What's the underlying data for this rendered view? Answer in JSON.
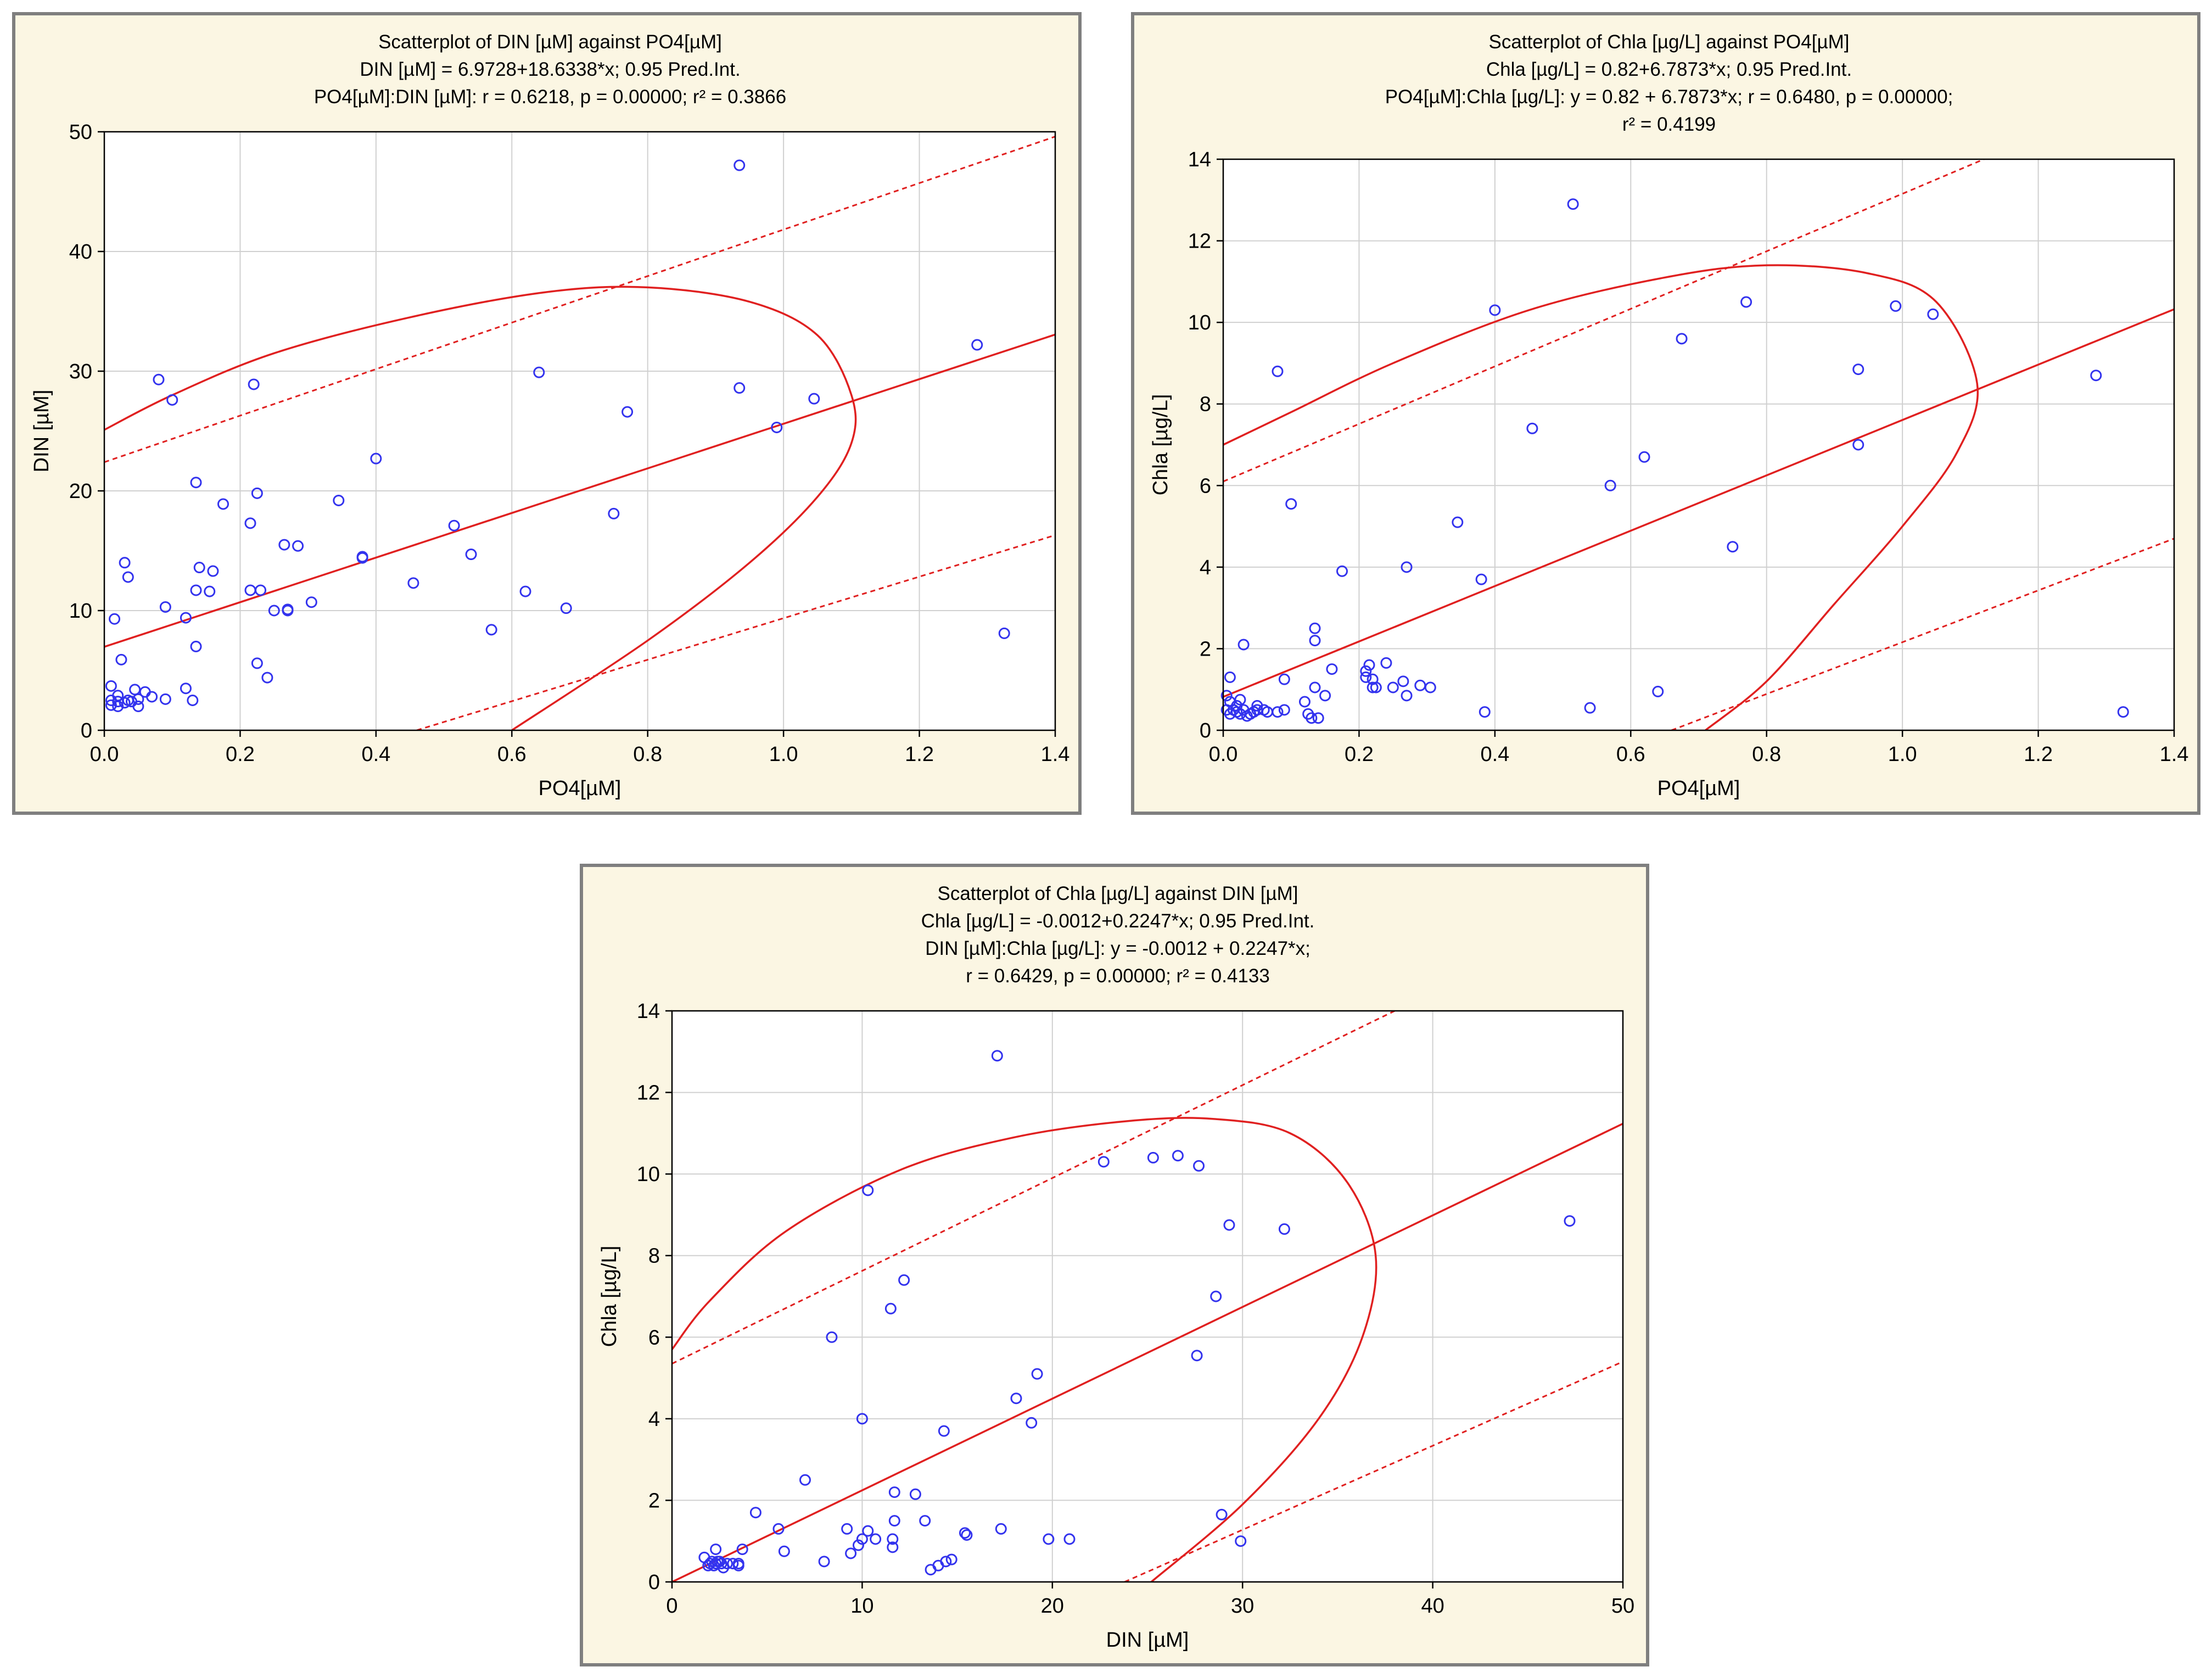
{
  "page": {
    "background": "#ffffff",
    "panel_background": "#fbf6e3",
    "panel_border": "#7f7f7f"
  },
  "colors": {
    "points": "#3333ee",
    "fit": "#e02020",
    "grid": "#d0d0d0"
  },
  "chart_data": [
    {
      "type": "scatter",
      "title_lines": [
        "Scatterplot of DIN [µM] against PO4[µM]",
        "DIN [µM] = 6.9728+18.6338*x; 0.95 Pred.Int.",
        "PO4[µM]:DIN [µM]:   r = 0.6218, p = 0.00000; r² = 0.3866"
      ],
      "xlabel": "PO4[µM]",
      "ylabel": "DIN [µM]",
      "xlim": [
        0,
        1.4
      ],
      "ylim": [
        0,
        50
      ],
      "xticks": [
        0,
        0.2,
        0.4,
        0.6,
        0.8,
        1.0,
        1.2,
        1.4
      ],
      "xtick_labels": [
        "0.0",
        "0.2",
        "0.4",
        "0.6",
        "0.8",
        "1.0",
        "1.2",
        "1.4"
      ],
      "yticks": [
        0,
        10,
        20,
        30,
        40,
        50
      ],
      "ytick_labels": [
        "0",
        "10",
        "20",
        "30",
        "40",
        "50"
      ],
      "fit": {
        "intercept": 6.9728,
        "slope": 18.6338
      },
      "pred_interval": {
        "upper": [
          [
            0,
            22.4
          ],
          [
            1.4,
            49.6
          ]
        ],
        "lower": [
          [
            0.46,
            0
          ],
          [
            1.4,
            16.3
          ]
        ]
      },
      "ellipse": [
        [
          0,
          25.1
        ],
        [
          0.1,
          28.0
        ],
        [
          0.25,
          31.5
        ],
        [
          0.45,
          34.5
        ],
        [
          0.65,
          36.6
        ],
        [
          0.8,
          37.0
        ],
        [
          0.95,
          35.8
        ],
        [
          1.05,
          33.0
        ],
        [
          1.1,
          28.0
        ],
        [
          1.1,
          24.0
        ],
        [
          1.05,
          19.5
        ],
        [
          0.95,
          14.0
        ],
        [
          0.8,
          7.5
        ],
        [
          0.6,
          0
        ]
      ],
      "points": [
        [
          0.01,
          3.7
        ],
        [
          0.01,
          2.5
        ],
        [
          0.01,
          2.1
        ],
        [
          0.02,
          2.4
        ],
        [
          0.02,
          2.0
        ],
        [
          0.02,
          2.9
        ],
        [
          0.015,
          9.3
        ],
        [
          0.025,
          5.9
        ],
        [
          0.03,
          2.3
        ],
        [
          0.035,
          2.5
        ],
        [
          0.04,
          2.4
        ],
        [
          0.045,
          3.4
        ],
        [
          0.05,
          2.0
        ],
        [
          0.05,
          2.6
        ],
        [
          0.06,
          3.2
        ],
        [
          0.07,
          2.8
        ],
        [
          0.03,
          14.0
        ],
        [
          0.035,
          12.8
        ],
        [
          0.08,
          29.3
        ],
        [
          0.09,
          2.6
        ],
        [
          0.09,
          10.3
        ],
        [
          0.1,
          27.6
        ],
        [
          0.12,
          9.4
        ],
        [
          0.12,
          3.5
        ],
        [
          0.13,
          2.5
        ],
        [
          0.135,
          20.7
        ],
        [
          0.135,
          7.0
        ],
        [
          0.135,
          11.7
        ],
        [
          0.14,
          13.6
        ],
        [
          0.155,
          11.6
        ],
        [
          0.16,
          13.3
        ],
        [
          0.175,
          18.9
        ],
        [
          0.215,
          17.3
        ],
        [
          0.215,
          11.7
        ],
        [
          0.22,
          28.9
        ],
        [
          0.225,
          19.8
        ],
        [
          0.225,
          5.6
        ],
        [
          0.23,
          11.7
        ],
        [
          0.24,
          4.4
        ],
        [
          0.25,
          10.0
        ],
        [
          0.265,
          15.5
        ],
        [
          0.27,
          10.0
        ],
        [
          0.27,
          10.1
        ],
        [
          0.285,
          15.4
        ],
        [
          0.305,
          10.7
        ],
        [
          0.345,
          19.2
        ],
        [
          0.38,
          14.5
        ],
        [
          0.38,
          14.4
        ],
        [
          0.4,
          22.7
        ],
        [
          0.455,
          12.3
        ],
        [
          0.515,
          17.1
        ],
        [
          0.54,
          14.7
        ],
        [
          0.57,
          8.4
        ],
        [
          0.62,
          11.6
        ],
        [
          0.64,
          29.9
        ],
        [
          0.68,
          10.2
        ],
        [
          0.75,
          18.1
        ],
        [
          0.77,
          26.6
        ],
        [
          0.935,
          47.2
        ],
        [
          0.935,
          28.6
        ],
        [
          0.99,
          25.3
        ],
        [
          1.045,
          27.7
        ],
        [
          1.285,
          32.2
        ],
        [
          1.325,
          8.1
        ]
      ]
    },
    {
      "type": "scatter",
      "title_lines": [
        "Scatterplot of Chla [µg/L] against PO4[µM]",
        "Chla [µg/L] = 0.82+6.7873*x; 0.95 Pred.Int.",
        "PO4[µM]:Chla [µg/L]:   y = 0.82 + 6.7873*x;  r = 0.6480, p = 0.00000;",
        "r² = 0.4199"
      ],
      "xlabel": "PO4[µM]",
      "ylabel": "Chla [µg/L]",
      "xlim": [
        0,
        1.4
      ],
      "ylim": [
        0,
        14
      ],
      "xticks": [
        0,
        0.2,
        0.4,
        0.6,
        0.8,
        1.0,
        1.2,
        1.4
      ],
      "xtick_labels": [
        "0.0",
        "0.2",
        "0.4",
        "0.6",
        "0.8",
        "1.0",
        "1.2",
        "1.4"
      ],
      "yticks": [
        0,
        2,
        4,
        6,
        8,
        10,
        12,
        14
      ],
      "ytick_labels": [
        "0",
        "2",
        "4",
        "6",
        "8",
        "10",
        "12",
        "14"
      ],
      "fit": {
        "intercept": 0.82,
        "slope": 6.7873
      },
      "pred_interval": {
        "upper": [
          [
            0,
            6.1
          ],
          [
            1.12,
            14
          ]
        ],
        "lower": [
          [
            0.66,
            0
          ],
          [
            1.4,
            4.7
          ]
        ]
      },
      "ellipse": [
        [
          0,
          7.0
        ],
        [
          0.1,
          7.8
        ],
        [
          0.25,
          9.0
        ],
        [
          0.45,
          10.3
        ],
        [
          0.65,
          11.1
        ],
        [
          0.8,
          11.4
        ],
        [
          0.95,
          11.2
        ],
        [
          1.05,
          10.5
        ],
        [
          1.11,
          8.5
        ],
        [
          1.08,
          6.8
        ],
        [
          1.0,
          5.0
        ],
        [
          0.9,
          3.1
        ],
        [
          0.8,
          1.2
        ],
        [
          0.71,
          0
        ]
      ],
      "points": [
        [
          0.005,
          0.5
        ],
        [
          0.005,
          0.85
        ],
        [
          0.01,
          0.4
        ],
        [
          0.01,
          0.7
        ],
        [
          0.01,
          1.3
        ],
        [
          0.015,
          0.5
        ],
        [
          0.015,
          0.5
        ],
        [
          0.02,
          0.6
        ],
        [
          0.02,
          0.45
        ],
        [
          0.025,
          0.4
        ],
        [
          0.025,
          0.75
        ],
        [
          0.03,
          0.5
        ],
        [
          0.03,
          2.1
        ],
        [
          0.035,
          0.35
        ],
        [
          0.04,
          0.4
        ],
        [
          0.045,
          0.45
        ],
        [
          0.05,
          0.5
        ],
        [
          0.05,
          0.6
        ],
        [
          0.06,
          0.5
        ],
        [
          0.065,
          0.45
        ],
        [
          0.08,
          0.45
        ],
        [
          0.08,
          8.8
        ],
        [
          0.09,
          1.25
        ],
        [
          0.09,
          0.5
        ],
        [
          0.1,
          5.55
        ],
        [
          0.12,
          0.7
        ],
        [
          0.125,
          0.4
        ],
        [
          0.13,
          0.3
        ],
        [
          0.135,
          1.05
        ],
        [
          0.135,
          2.5
        ],
        [
          0.135,
          2.2
        ],
        [
          0.14,
          0.3
        ],
        [
          0.15,
          0.85
        ],
        [
          0.16,
          1.5
        ],
        [
          0.175,
          3.9
        ],
        [
          0.21,
          1.45
        ],
        [
          0.21,
          1.3
        ],
        [
          0.215,
          1.6
        ],
        [
          0.22,
          1.05
        ],
        [
          0.22,
          1.25
        ],
        [
          0.225,
          1.05
        ],
        [
          0.24,
          1.65
        ],
        [
          0.25,
          1.05
        ],
        [
          0.265,
          1.2
        ],
        [
          0.27,
          0.85
        ],
        [
          0.27,
          4.0
        ],
        [
          0.29,
          1.1
        ],
        [
          0.305,
          1.05
        ],
        [
          0.345,
          5.1
        ],
        [
          0.38,
          3.7
        ],
        [
          0.385,
          0.45
        ],
        [
          0.4,
          10.3
        ],
        [
          0.455,
          7.4
        ],
        [
          0.515,
          12.9
        ],
        [
          0.54,
          0.55
        ],
        [
          0.57,
          6.0
        ],
        [
          0.62,
          6.7
        ],
        [
          0.64,
          0.95
        ],
        [
          0.675,
          9.6
        ],
        [
          0.75,
          4.5
        ],
        [
          0.77,
          10.5
        ],
        [
          0.935,
          8.85
        ],
        [
          0.935,
          7.0
        ],
        [
          0.99,
          10.4
        ],
        [
          1.045,
          10.2
        ],
        [
          1.285,
          8.7
        ],
        [
          1.325,
          0.45
        ]
      ]
    },
    {
      "type": "scatter",
      "title_lines": [
        "Scatterplot of Chla [µg/L] against DIN [µM]",
        "Chla [µg/L] = -0.0012+0.2247*x; 0.95 Pred.Int.",
        "DIN [µM]:Chla [µg/L]:   y = -0.0012 + 0.2247*x;",
        "r = 0.6429, p = 0.00000; r² = 0.4133"
      ],
      "xlabel": "DIN [µM]",
      "ylabel": "Chla [µg/L]",
      "xlim": [
        0,
        50
      ],
      "ylim": [
        0,
        14
      ],
      "xticks": [
        0,
        10,
        20,
        30,
        40,
        50
      ],
      "xtick_labels": [
        "0",
        "10",
        "20",
        "30",
        "40",
        "50"
      ],
      "yticks": [
        0,
        2,
        4,
        6,
        8,
        10,
        12,
        14
      ],
      "ytick_labels": [
        "0",
        "2",
        "4",
        "6",
        "8",
        "10",
        "12",
        "14"
      ],
      "fit": {
        "intercept": -0.0012,
        "slope": 0.2247
      },
      "pred_interval": {
        "upper": [
          [
            0,
            5.35
          ],
          [
            38.0,
            14
          ]
        ],
        "lower": [
          [
            23.8,
            0
          ],
          [
            50,
            5.4
          ]
        ]
      },
      "ellipse": [
        [
          0,
          5.7
        ],
        [
          2.0,
          6.9
        ],
        [
          6.0,
          8.6
        ],
        [
          12.0,
          10.1
        ],
        [
          18.0,
          10.9
        ],
        [
          24.0,
          11.3
        ],
        [
          28.5,
          11.35
        ],
        [
          32.5,
          11.0
        ],
        [
          35.5,
          9.8
        ],
        [
          37.0,
          8.0
        ],
        [
          36.3,
          6.0
        ],
        [
          34.0,
          4.0
        ],
        [
          30.0,
          1.9
        ],
        [
          25.2,
          0
        ]
      ],
      "points": [
        [
          1.7,
          0.6
        ],
        [
          1.9,
          0.4
        ],
        [
          2.0,
          0.45
        ],
        [
          2.1,
          0.5
        ],
        [
          2.2,
          0.4
        ],
        [
          2.3,
          0.45
        ],
        [
          2.3,
          0.8
        ],
        [
          2.4,
          0.5
        ],
        [
          2.5,
          0.5
        ],
        [
          2.6,
          0.45
        ],
        [
          2.7,
          0.35
        ],
        [
          2.9,
          0.45
        ],
        [
          3.2,
          0.45
        ],
        [
          3.5,
          0.4
        ],
        [
          3.5,
          0.45
        ],
        [
          3.7,
          0.8
        ],
        [
          4.4,
          1.7
        ],
        [
          5.6,
          1.3
        ],
        [
          5.9,
          0.75
        ],
        [
          7.0,
          2.5
        ],
        [
          8.0,
          0.5
        ],
        [
          8.4,
          6.0
        ],
        [
          9.2,
          1.3
        ],
        [
          9.4,
          0.7
        ],
        [
          9.8,
          0.9
        ],
        [
          10.0,
          4.0
        ],
        [
          10.0,
          1.05
        ],
        [
          10.3,
          9.6
        ],
        [
          10.3,
          1.25
        ],
        [
          10.7,
          1.05
        ],
        [
          11.5,
          6.7
        ],
        [
          11.6,
          0.85
        ],
        [
          11.6,
          1.05
        ],
        [
          11.7,
          2.2
        ],
        [
          11.7,
          1.5
        ],
        [
          12.2,
          7.4
        ],
        [
          12.8,
          2.15
        ],
        [
          13.3,
          1.5
        ],
        [
          13.6,
          0.3
        ],
        [
          14.0,
          0.4
        ],
        [
          14.3,
          3.7
        ],
        [
          14.4,
          0.5
        ],
        [
          14.7,
          0.55
        ],
        [
          15.4,
          1.2
        ],
        [
          15.5,
          1.15
        ],
        [
          17.1,
          12.9
        ],
        [
          17.3,
          1.3
        ],
        [
          18.1,
          4.5
        ],
        [
          18.9,
          3.9
        ],
        [
          19.2,
          5.1
        ],
        [
          19.8,
          1.05
        ],
        [
          20.9,
          1.05
        ],
        [
          22.7,
          10.3
        ],
        [
          25.3,
          10.4
        ],
        [
          26.6,
          10.45
        ],
        [
          27.6,
          5.55
        ],
        [
          27.7,
          10.2
        ],
        [
          28.6,
          7.0
        ],
        [
          28.9,
          1.65
        ],
        [
          29.3,
          8.75
        ],
        [
          29.9,
          1.0
        ],
        [
          32.2,
          8.65
        ],
        [
          47.2,
          8.85
        ]
      ]
    }
  ]
}
